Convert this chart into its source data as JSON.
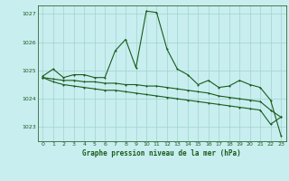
{
  "title": "Graphe pression niveau de la mer (hPa)",
  "background_color": "#c8eef0",
  "grid_color": "#a0d4cc",
  "line_color": "#1a5c1a",
  "spine_color": "#336633",
  "xlim": [
    -0.5,
    23.5
  ],
  "ylim": [
    1022.5,
    1027.3
  ],
  "yticks": [
    1023,
    1024,
    1025,
    1026,
    1027
  ],
  "xticks": [
    0,
    1,
    2,
    3,
    4,
    5,
    6,
    7,
    8,
    9,
    10,
    11,
    12,
    13,
    14,
    15,
    16,
    17,
    18,
    19,
    20,
    21,
    22,
    23
  ],
  "series1": [
    1024.8,
    1025.05,
    1024.75,
    1024.85,
    1024.85,
    1024.75,
    1024.75,
    1025.7,
    1026.1,
    1025.1,
    1027.1,
    1027.05,
    1025.75,
    1025.05,
    1024.85,
    1024.5,
    1024.65,
    1024.4,
    1024.45,
    1024.65,
    1024.5,
    1024.4,
    1023.95,
    1022.7
  ],
  "series2": [
    1024.75,
    1024.7,
    1024.65,
    1024.65,
    1024.6,
    1024.6,
    1024.55,
    1024.55,
    1024.5,
    1024.5,
    1024.45,
    1024.45,
    1024.4,
    1024.35,
    1024.3,
    1024.25,
    1024.2,
    1024.1,
    1024.05,
    1024.0,
    1023.95,
    1023.9,
    1023.6,
    1023.35
  ],
  "series3": [
    1024.75,
    1024.6,
    1024.5,
    1024.45,
    1024.4,
    1024.35,
    1024.3,
    1024.3,
    1024.25,
    1024.2,
    1024.15,
    1024.1,
    1024.05,
    1024.0,
    1023.95,
    1023.9,
    1023.85,
    1023.8,
    1023.75,
    1023.7,
    1023.65,
    1023.6,
    1023.1,
    1023.35
  ]
}
